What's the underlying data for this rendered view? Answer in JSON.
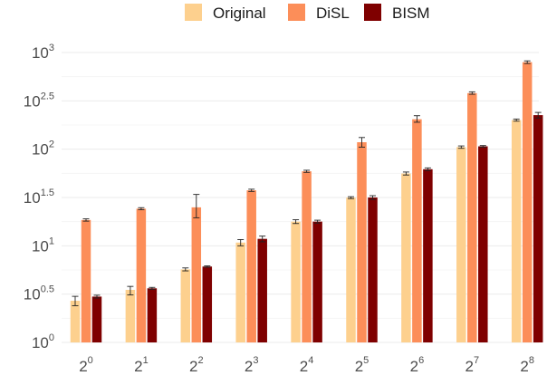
{
  "chart_data": {
    "type": "bar",
    "y_scale": "log10",
    "ylim": [
      1,
      1000
    ],
    "y_ticks": [
      {
        "base": "10",
        "exp": "0"
      },
      {
        "base": "10",
        "exp": "0.5"
      },
      {
        "base": "10",
        "exp": "1"
      },
      {
        "base": "10",
        "exp": "1.5"
      },
      {
        "base": "10",
        "exp": "2"
      },
      {
        "base": "10",
        "exp": "2.5"
      },
      {
        "base": "10",
        "exp": "3"
      }
    ],
    "y_tick_values": [
      1,
      3.162,
      10,
      31.62,
      100,
      316.2,
      1000
    ],
    "categories": [
      {
        "base": "2",
        "exp": "0"
      },
      {
        "base": "2",
        "exp": "1"
      },
      {
        "base": "2",
        "exp": "2"
      },
      {
        "base": "2",
        "exp": "3"
      },
      {
        "base": "2",
        "exp": "4"
      },
      {
        "base": "2",
        "exp": "5"
      },
      {
        "base": "2",
        "exp": "6"
      },
      {
        "base": "2",
        "exp": "7"
      },
      {
        "base": "2",
        "exp": "8"
      }
    ],
    "grid": true,
    "legend_position": "top",
    "series": [
      {
        "name": "Original",
        "color": "#FDD08E",
        "values": [
          2.7,
          3.5,
          5.7,
          10.8,
          17.8,
          31.5,
          56,
          105,
          200
        ],
        "err_low": [
          2.4,
          3.1,
          5.5,
          10.0,
          17.0,
          30.8,
          54,
          102,
          195
        ],
        "err_high": [
          3.0,
          3.8,
          5.9,
          11.6,
          18.6,
          32.2,
          58,
          108,
          205
        ]
      },
      {
        "name": "DiSL",
        "color": "#FC8E59",
        "values": [
          18.5,
          24.2,
          25,
          37.5,
          59,
          118,
          204,
          380,
          795
        ],
        "err_low": [
          18.0,
          23.6,
          19.5,
          36.5,
          57.5,
          105,
          190,
          370,
          770
        ],
        "err_high": [
          19.0,
          24.8,
          34,
          38.5,
          60.5,
          132,
          222,
          392,
          820
        ]
      },
      {
        "name": "BISM",
        "color": "#7F0000",
        "values": [
          2.98,
          3.63,
          6.1,
          11.8,
          17.8,
          31.6,
          62,
          107,
          225
        ],
        "err_low": [
          2.88,
          3.55,
          6.0,
          11.0,
          17.2,
          30.2,
          60,
          105,
          210
        ],
        "err_high": [
          3.08,
          3.71,
          6.2,
          12.6,
          18.4,
          33.0,
          64,
          109,
          240
        ]
      }
    ]
  }
}
